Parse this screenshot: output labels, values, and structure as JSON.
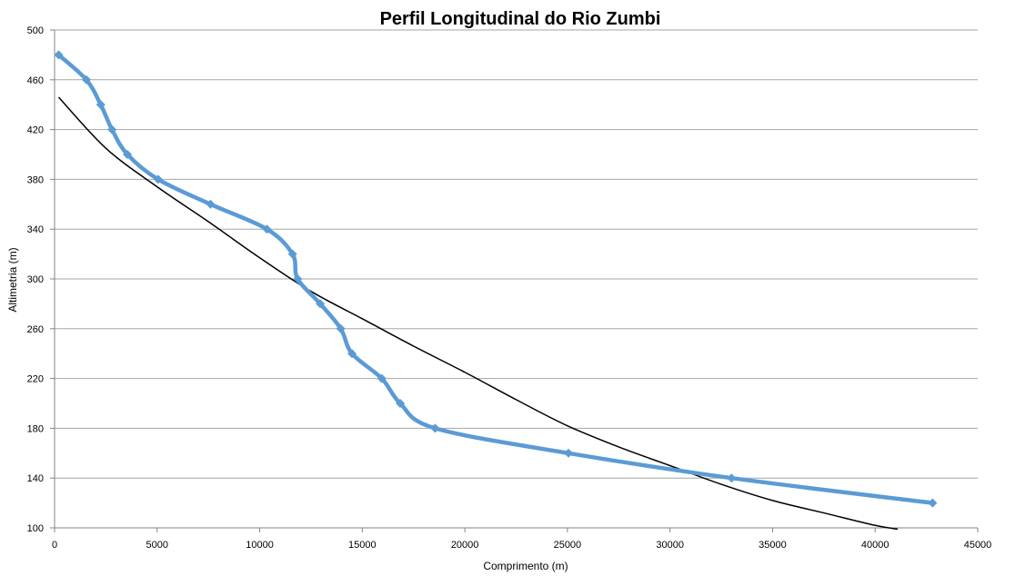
{
  "chart_data": {
    "type": "scatter",
    "title": "Perfil Longitudinal do Rio  Zumbi",
    "xlabel": "Comprimento (m)",
    "ylabel": "Altimetria (m)",
    "xlim": [
      0,
      45000
    ],
    "ylim": [
      100,
      500
    ],
    "x_ticks": [
      "0",
      "5000",
      "10000",
      "15000",
      "20000",
      "25000",
      "30000",
      "35000",
      "40000",
      "45000"
    ],
    "y_ticks": [
      "100",
      "140",
      "180",
      "220",
      "260",
      "300",
      "340",
      "380",
      "420",
      "460",
      "500"
    ],
    "grid": "horizontal",
    "series": [
      {
        "style": "smooth-line-with-diamond-markers",
        "color": "#5b9bd5",
        "x": [
          200,
          1550,
          2250,
          2800,
          3550,
          5050,
          7600,
          10350,
          11600,
          11850,
          12950,
          13950,
          14500,
          15950,
          16850,
          18550,
          25050,
          33000,
          42800
        ],
        "y": [
          480,
          460,
          440,
          420,
          400,
          380,
          360,
          340,
          320,
          300,
          280,
          260,
          240,
          220,
          200,
          180,
          160,
          140,
          120
        ]
      },
      {
        "style": "trendline",
        "color": "#000000",
        "x": [
          200,
          2500,
          5000,
          7500,
          10000,
          12500,
          15000,
          17500,
          20000,
          22500,
          25000,
          27500,
          30000,
          32500,
          35000,
          37500,
          40000,
          41100
        ],
        "y": [
          446,
          405,
          374,
          346,
          317,
          290,
          268,
          246,
          225,
          203,
          182,
          165,
          150,
          135,
          122,
          112,
          102,
          99
        ]
      }
    ]
  }
}
